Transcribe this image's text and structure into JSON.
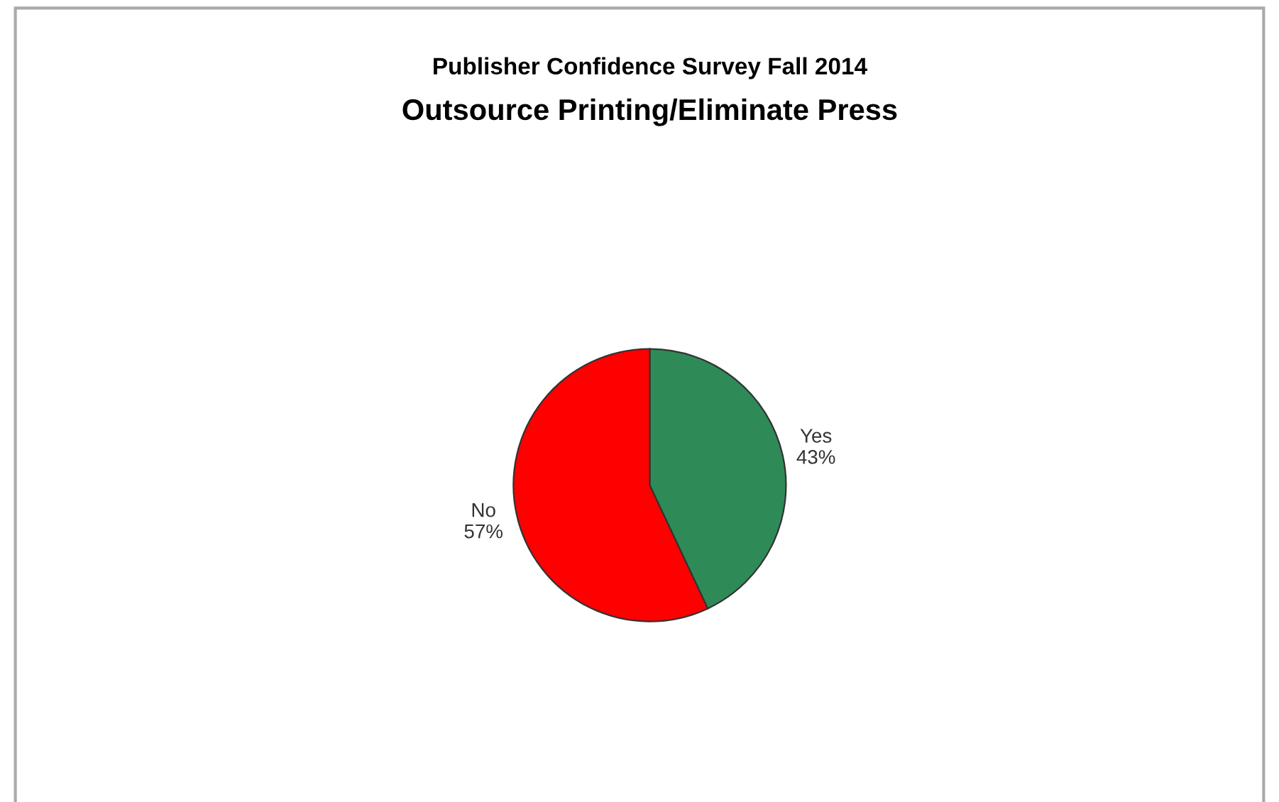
{
  "chart_data": {
    "type": "pie",
    "title": "Publisher Confidence Survey Fall 2014",
    "subtitle": "Outsource Printing/Eliminate Press",
    "categories": [
      "Yes",
      "No"
    ],
    "values": [
      43,
      57
    ],
    "colors": [
      "#2e8b57",
      "#ff0000"
    ],
    "value_labels": [
      "43%",
      "57%"
    ]
  }
}
